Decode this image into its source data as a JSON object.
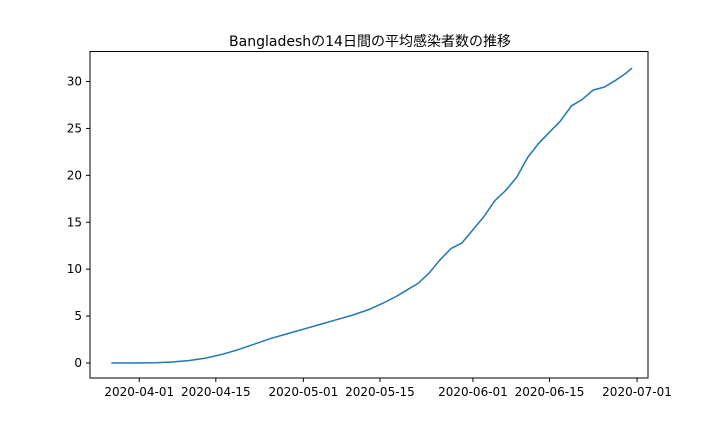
{
  "chart_data": {
    "type": "line",
    "title": "Bangladeshの14日間の平均感染者数の推移",
    "xlabel": "",
    "ylabel": "",
    "x_axis": {
      "type": "date",
      "range": [
        "2020-03-23",
        "2020-07-03"
      ],
      "ticks": [
        "2020-04-01",
        "2020-04-15",
        "2020-05-01",
        "2020-05-15",
        "2020-06-01",
        "2020-06-15",
        "2020-07-01"
      ]
    },
    "y_axis": {
      "range": [
        -1.6,
        33.2
      ],
      "ticks": [
        0,
        5,
        10,
        15,
        20,
        25,
        30
      ]
    },
    "grid": false,
    "legend": "none",
    "colors": {
      "line": "#1f77b4",
      "axes": "#000000",
      "background": "#ffffff"
    },
    "series": [
      {
        "x": [
          "2020-03-27",
          "2020-03-31",
          "2020-04-04",
          "2020-04-07",
          "2020-04-10",
          "2020-04-13",
          "2020-04-16",
          "2020-04-19",
          "2020-04-22",
          "2020-04-25",
          "2020-04-28",
          "2020-05-01",
          "2020-05-04",
          "2020-05-07",
          "2020-05-10",
          "2020-05-13",
          "2020-05-16",
          "2020-05-18",
          "2020-05-20",
          "2020-05-22",
          "2020-05-24",
          "2020-05-26",
          "2020-05-28",
          "2020-05-30",
          "2020-06-01",
          "2020-06-03",
          "2020-06-05",
          "2020-06-07",
          "2020-06-09",
          "2020-06-11",
          "2020-06-13",
          "2020-06-15",
          "2020-06-17",
          "2020-06-19",
          "2020-06-21",
          "2020-06-23",
          "2020-06-25",
          "2020-06-27",
          "2020-06-29",
          "2020-06-30"
        ],
        "values": [
          0.0,
          0.0,
          0.02,
          0.1,
          0.25,
          0.5,
          0.9,
          1.4,
          2.0,
          2.6,
          3.1,
          3.6,
          4.1,
          4.6,
          5.1,
          5.7,
          6.5,
          7.1,
          7.8,
          8.5,
          9.6,
          11.0,
          12.2,
          12.8,
          14.2,
          15.6,
          17.3,
          18.4,
          19.8,
          21.9,
          23.4,
          24.6,
          25.8,
          27.4,
          28.1,
          29.1,
          29.4,
          30.1,
          30.9,
          31.4
        ]
      }
    ]
  }
}
